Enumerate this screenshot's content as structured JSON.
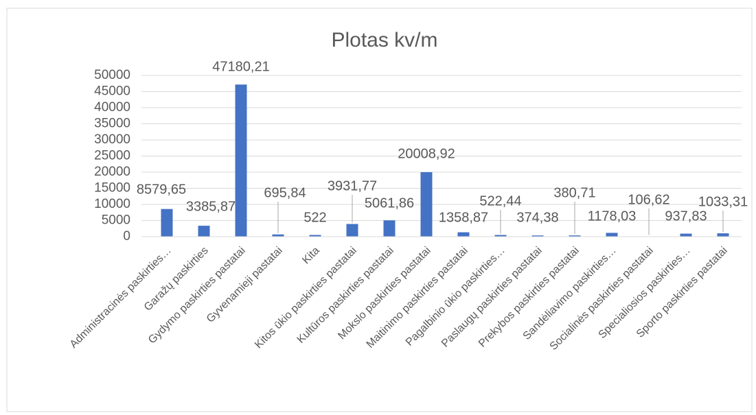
{
  "chart_data": {
    "type": "bar",
    "title": "Plotas kv/m",
    "categories": [
      "Administracinės paskirties…",
      "Garažų paskirties",
      "Gydymo paskirties pastatai",
      "Gyvenamieji pastatai",
      "Kita",
      "Kitos ūkio paskirties pastatai",
      "Kultūros paskirties pastatai",
      "Mokslo paskirties pastatai",
      "Maitinimo paskirties pastatai",
      "Pagalbinio ūkio paskirties…",
      "Paslaugų paskirties  pastatai",
      "Prekybos paskirties pastatai",
      "Sandėliavimo paskirties…",
      "Socialinės paskirties  pastatai",
      "Specialiosios paskirties…",
      "Sporto paskirties pastatai"
    ],
    "values": [
      8579.65,
      3385.87,
      47180.21,
      695.84,
      522,
      3931.77,
      5061.86,
      20008.92,
      1358.87,
      522.44,
      374.38,
      380.71,
      1178.03,
      106.62,
      937.83,
      1033.31
    ],
    "value_labels": [
      "8579,65",
      "3385,87",
      "47180,21",
      "695,84",
      "522",
      "3931,77",
      "5061,86",
      "20008,92",
      "1358,87",
      "522,44",
      "374,38",
      "380,71",
      "1178,03",
      "106,62",
      "937,83",
      "1033,31"
    ],
    "color": "#4472c4",
    "ylim": [
      0,
      50000
    ],
    "yticks": [
      0,
      5000,
      10000,
      15000,
      20000,
      25000,
      30000,
      35000,
      40000,
      45000,
      50000
    ],
    "grid": true
  }
}
